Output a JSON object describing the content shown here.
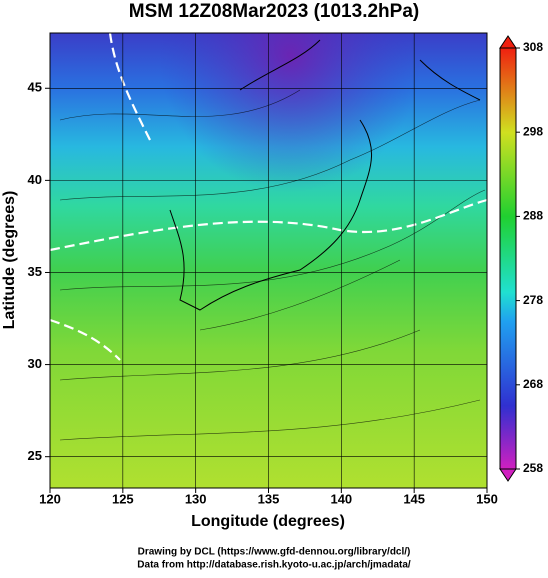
{
  "chart_data": {
    "type": "map",
    "title": "MSM 12Z08Mar2023 (1013.2hPa)",
    "xlabel": "Longitude (degrees)",
    "ylabel": "Latitude  (degrees)",
    "xlim": [
      120,
      150
    ],
    "ylim": [
      23.3,
      48
    ],
    "xticks": [
      120,
      125,
      130,
      135,
      140,
      145,
      150
    ],
    "yticks": [
      25,
      30,
      35,
      40,
      45
    ],
    "grid": true,
    "colorbar": {
      "lim": [
        258,
        308
      ],
      "ticks": [
        258,
        268,
        278,
        288,
        298,
        308
      ]
    },
    "credits": [
      "Drawing by DCL (https://www.gfd-dennou.org/library/dcl/)",
      "Data from http://database.rish.kyoto-u.ac.jp/arch/jmadata/"
    ]
  }
}
